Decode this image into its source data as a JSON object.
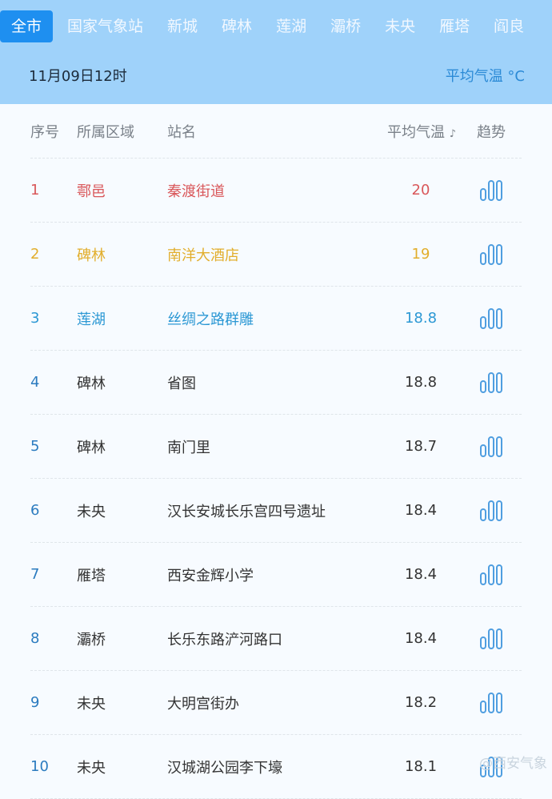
{
  "tabs": [
    {
      "label": "全市",
      "active": true
    },
    {
      "label": "国家气象站"
    },
    {
      "label": "新城"
    },
    {
      "label": "碑林"
    },
    {
      "label": "莲湖"
    },
    {
      "label": "灞桥"
    },
    {
      "label": "未央"
    },
    {
      "label": "雁塔"
    },
    {
      "label": "阎良"
    }
  ],
  "date": "11月09日12时",
  "metric": "平均气温 °C",
  "headers": {
    "index": "序号",
    "district": "所属区域",
    "station": "站名",
    "temp": "平均气温",
    "trend": "趋势"
  },
  "rows": [
    {
      "i": "1",
      "d": "鄠邑",
      "s": "秦渡街道",
      "t": "20",
      "color": "#d9575a"
    },
    {
      "i": "2",
      "d": "碑林",
      "s": "南洋大酒店",
      "t": "19",
      "color": "#e2ae2c"
    },
    {
      "i": "3",
      "d": "莲湖",
      "s": "丝绸之路群雕",
      "t": "18.8",
      "color": "#2c98d4"
    },
    {
      "i": "4",
      "d": "碑林",
      "s": "省图",
      "t": "18.8"
    },
    {
      "i": "5",
      "d": "碑林",
      "s": "南门里",
      "t": "18.7"
    },
    {
      "i": "6",
      "d": "未央",
      "s": "汉长安城长乐宫四号遗址",
      "t": "18.4"
    },
    {
      "i": "7",
      "d": "雁塔",
      "s": "西安金辉小学",
      "t": "18.4"
    },
    {
      "i": "8",
      "d": "灞桥",
      "s": "长乐东路浐河路口",
      "t": "18.4"
    },
    {
      "i": "9",
      "d": "未央",
      "s": "大明宫街办",
      "t": "18.2"
    },
    {
      "i": "10",
      "d": "未央",
      "s": "汉城湖公园李下壕",
      "t": "18.1"
    }
  ],
  "watermark": "@西安气象",
  "colors": {
    "header_bg": "#9fd2fa",
    "active_tab": "#1e8ff0",
    "trend_icon": "#4f9ee0"
  }
}
